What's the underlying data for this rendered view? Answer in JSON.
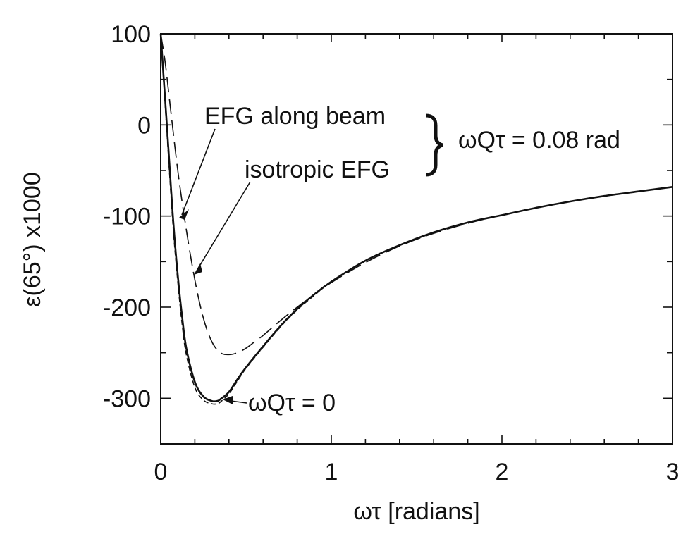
{
  "chart_data": {
    "type": "line",
    "xlabel": "ωτ [radians]",
    "ylabel": "ε(65°) x1000",
    "xlim": [
      0,
      3
    ],
    "ylim": [
      -350,
      100
    ],
    "xticks": [
      "0",
      "1",
      "2",
      "3"
    ],
    "yticks": [
      "100",
      "0",
      "-100",
      "-200",
      "-300"
    ],
    "grid": false,
    "series": [
      {
        "name": "EFG along beam",
        "style": "solid",
        "x": [
          0,
          0.025,
          0.05,
          0.075,
          0.1,
          0.125,
          0.15,
          0.2,
          0.25,
          0.3,
          0.33,
          0.35,
          0.4,
          0.45,
          0.5,
          0.6,
          0.7,
          0.8,
          0.9,
          1.0,
          1.2,
          1.4,
          1.6,
          1.8,
          2.0,
          2.2,
          2.4,
          2.6,
          2.8,
          3.0
        ],
        "y": [
          100,
          30,
          -40,
          -110,
          -165,
          -210,
          -245,
          -282,
          -298,
          -303,
          -303,
          -301,
          -293,
          -279,
          -266,
          -243,
          -221,
          -202,
          -186,
          -172,
          -149,
          -132,
          -118,
          -107,
          -99,
          -91,
          -84,
          -78,
          -73,
          -68
        ]
      },
      {
        "name": "isotropic EFG",
        "style": "long-dash",
        "x": [
          0,
          0.025,
          0.05,
          0.1,
          0.15,
          0.2,
          0.25,
          0.3,
          0.35,
          0.4,
          0.45,
          0.5,
          0.55,
          0.6,
          0.7,
          0.8,
          0.9,
          1.0,
          1.2,
          1.4,
          1.6,
          1.8,
          2.0,
          2.2,
          2.4,
          2.6,
          2.8,
          3.0
        ],
        "y": [
          100,
          70,
          30,
          -50,
          -115,
          -170,
          -212,
          -238,
          -250,
          -252,
          -250,
          -245,
          -238,
          -231,
          -215,
          -200,
          -186,
          -173,
          -151,
          -133,
          -119,
          -108,
          -99,
          -91,
          -84,
          -78,
          -73,
          -68
        ]
      },
      {
        "name": "ωQτ = 0",
        "style": "short-dash",
        "x": [
          0,
          0.025,
          0.05,
          0.075,
          0.1,
          0.125,
          0.15,
          0.2,
          0.25,
          0.3,
          0.33,
          0.35,
          0.4,
          0.45,
          0.5,
          0.6,
          0.7,
          0.8,
          0.9,
          1.0,
          1.2,
          1.4,
          1.6,
          1.8,
          2.0,
          2.2,
          2.4,
          2.6,
          2.8,
          3.0
        ],
        "y": [
          100,
          25,
          -48,
          -118,
          -172,
          -218,
          -252,
          -288,
          -302,
          -306,
          -306,
          -304,
          -295,
          -281,
          -267,
          -244,
          -222,
          -203,
          -187,
          -172,
          -149,
          -132,
          -118,
          -107,
          -99,
          -91,
          -84,
          -78,
          -73,
          -68
        ]
      }
    ],
    "annotations": [
      {
        "text": "EFG along beam"
      },
      {
        "text": "isotropic EFG"
      },
      {
        "text": "ωQτ = 0.08 rad"
      },
      {
        "text": "ωQτ = 0"
      }
    ]
  }
}
